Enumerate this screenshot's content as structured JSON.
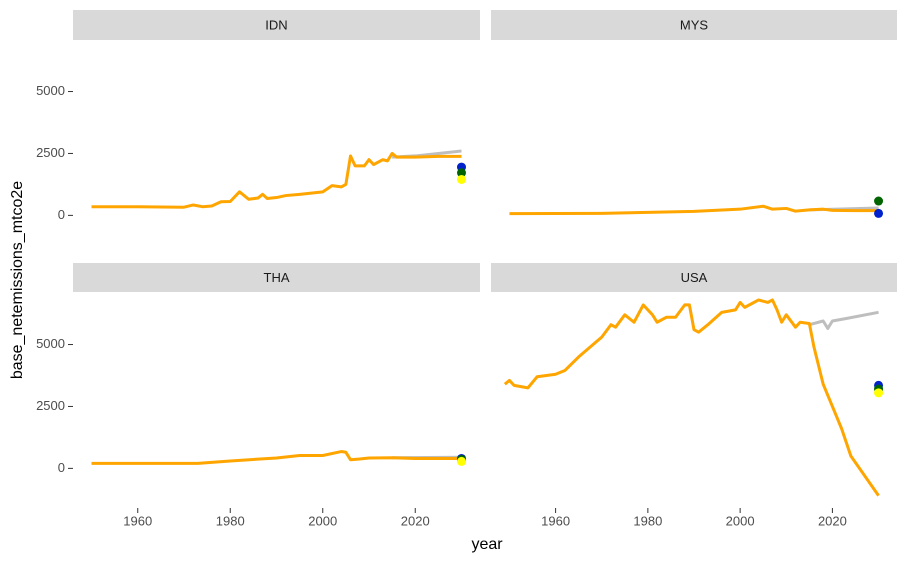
{
  "axes": {
    "xlabel": "year",
    "ylabel": "base_netemissions_mtco2e",
    "xlim": [
      1946,
      2034
    ],
    "ylim": [
      -1600,
      7000
    ],
    "xticks": [
      1960,
      1980,
      2000,
      2020
    ],
    "yticks": [
      0,
      2500,
      5000
    ]
  },
  "chart_data": [
    {
      "type": "line",
      "title": "IDN",
      "series": [
        {
          "mode": "line",
          "color": "#bebebe",
          "x": [
            2015,
            2020,
            2025,
            2030
          ],
          "values": [
            2350,
            2400,
            2500,
            2600
          ]
        },
        {
          "mode": "line",
          "color": "#ffa500",
          "x": [
            1950,
            1960,
            1970,
            1972,
            1974,
            1976,
            1978,
            1980,
            1982,
            1984,
            1986,
            1987,
            1988,
            1990,
            1992,
            1995,
            2000,
            2002,
            2004,
            2005,
            2006,
            2007,
            2009,
            2010,
            2011,
            2013,
            2014,
            2015,
            2016,
            2020,
            2025,
            2030
          ],
          "values": [
            350,
            350,
            330,
            420,
            350,
            380,
            550,
            560,
            950,
            650,
            700,
            850,
            680,
            720,
            800,
            850,
            950,
            1200,
            1150,
            1250,
            2400,
            2000,
            2000,
            2250,
            2050,
            2250,
            2200,
            2500,
            2350,
            2350,
            2380,
            2380
          ]
        },
        {
          "mode": "point",
          "color": "#0022cc",
          "x": [
            2030
          ],
          "values": [
            1950
          ]
        },
        {
          "mode": "point",
          "color": "#006400",
          "x": [
            2030
          ],
          "values": [
            1720
          ]
        },
        {
          "mode": "point",
          "color": "#ffff00",
          "x": [
            2030
          ],
          "values": [
            1450
          ]
        }
      ]
    },
    {
      "type": "line",
      "title": "MYS",
      "series": [
        {
          "mode": "line",
          "color": "#bebebe",
          "x": [
            2015,
            2030
          ],
          "values": [
            220,
            300
          ]
        },
        {
          "mode": "line",
          "color": "#ffa500",
          "x": [
            1950,
            1970,
            1980,
            1990,
            2000,
            2005,
            2007,
            2010,
            2012,
            2015,
            2018,
            2020,
            2025,
            2030
          ],
          "values": [
            70,
            80,
            120,
            160,
            250,
            370,
            250,
            280,
            170,
            220,
            250,
            200,
            190,
            190
          ]
        },
        {
          "mode": "point",
          "color": "#006400",
          "x": [
            2030
          ],
          "values": [
            580
          ]
        },
        {
          "mode": "point",
          "color": "#0022cc",
          "x": [
            2030
          ],
          "values": [
            80
          ]
        }
      ]
    },
    {
      "type": "line",
      "title": "THA",
      "series": [
        {
          "mode": "line",
          "color": "#bebebe",
          "x": [
            2015,
            2030
          ],
          "values": [
            430,
            450
          ]
        },
        {
          "mode": "line",
          "color": "#ffa500",
          "x": [
            1950,
            1973,
            1980,
            1990,
            1995,
            2000,
            2004,
            2005,
            2006,
            2008,
            2010,
            2015,
            2020,
            2030
          ],
          "values": [
            200,
            200,
            300,
            420,
            520,
            520,
            680,
            650,
            350,
            380,
            420,
            430,
            400,
            400
          ]
        },
        {
          "mode": "point",
          "color": "#0022cc",
          "x": [
            2030
          ],
          "values": [
            400
          ]
        },
        {
          "mode": "point",
          "color": "#006400",
          "x": [
            2030
          ],
          "values": [
            360
          ]
        },
        {
          "mode": "point",
          "color": "#ffff00",
          "x": [
            2030
          ],
          "values": [
            280
          ]
        }
      ]
    },
    {
      "type": "line",
      "title": "USA",
      "series": [
        {
          "mode": "line",
          "color": "#bebebe",
          "x": [
            2015,
            2018,
            2019,
            2020,
            2023,
            2030
          ],
          "values": [
            5800,
            5950,
            5650,
            5950,
            6050,
            6300
          ]
        },
        {
          "mode": "line",
          "color": "#ffa500",
          "x": [
            1949,
            1950,
            1951,
            1954,
            1956,
            1960,
            1962,
            1965,
            1970,
            1972,
            1973,
            1975,
            1977,
            1979,
            1981,
            1982,
            1984,
            1986,
            1988,
            1989,
            1990,
            1991,
            1993,
            1996,
            1999,
            2000,
            2001,
            2004,
            2006,
            2007,
            2008,
            2009,
            2010,
            2012,
            2013,
            2015,
            2016,
            2018,
            2020,
            2022,
            2024,
            2030
          ],
          "values": [
            3400,
            3550,
            3350,
            3250,
            3700,
            3800,
            3950,
            4500,
            5300,
            5800,
            5700,
            6200,
            5900,
            6600,
            6200,
            5900,
            6100,
            6100,
            6600,
            6600,
            5600,
            5500,
            5800,
            6300,
            6400,
            6700,
            6500,
            6800,
            6700,
            6800,
            6400,
            5900,
            6200,
            5700,
            5900,
            5850,
            4900,
            3400,
            2500,
            1600,
            500,
            -1100
          ]
        },
        {
          "mode": "point",
          "color": "#0022cc",
          "x": [
            2030
          ],
          "values": [
            3350
          ]
        },
        {
          "mode": "point",
          "color": "#006400",
          "x": [
            2030
          ],
          "values": [
            3200
          ]
        },
        {
          "mode": "point",
          "color": "#ffff00",
          "x": [
            2030
          ],
          "values": [
            3050
          ]
        }
      ]
    }
  ]
}
